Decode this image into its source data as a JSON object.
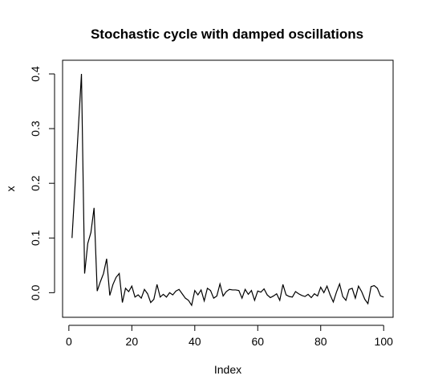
{
  "chart_data": {
    "type": "line",
    "title": "Stochastic cycle with damped oscillations",
    "xlabel": "Index",
    "ylabel": "x",
    "xlim": [
      -2,
      103
    ],
    "ylim": [
      -0.045,
      0.425
    ],
    "x_ticks": [
      0,
      20,
      40,
      60,
      80,
      100
    ],
    "y_ticks": [
      0.0,
      0.1,
      0.2,
      0.3,
      0.4
    ],
    "x_tick_labels": [
      "0",
      "20",
      "40",
      "60",
      "80",
      "100"
    ],
    "y_tick_labels": [
      "0.0",
      "0.1",
      "0.2",
      "0.3",
      "0.4"
    ],
    "grid": false,
    "line_color": "#000000",
    "x": [
      1,
      2,
      3,
      4,
      5,
      6,
      7,
      8,
      9,
      10,
      11,
      12,
      13,
      14,
      15,
      16,
      17,
      18,
      19,
      20,
      21,
      22,
      23,
      24,
      25,
      26,
      27,
      28,
      29,
      30,
      31,
      32,
      33,
      34,
      35,
      36,
      37,
      38,
      39,
      40,
      41,
      42,
      43,
      44,
      45,
      46,
      47,
      48,
      49,
      50,
      51,
      52,
      53,
      54,
      55,
      56,
      57,
      58,
      59,
      60,
      61,
      62,
      63,
      64,
      65,
      66,
      67,
      68,
      69,
      70,
      71,
      72,
      73,
      74,
      75,
      76,
      77,
      78,
      79,
      80,
      81,
      82,
      83,
      84,
      85,
      86,
      87,
      88,
      89,
      90,
      91,
      92,
      93,
      94,
      95,
      96,
      97,
      98,
      99,
      100
    ],
    "values": [
      0.1,
      0.2,
      0.3,
      0.4,
      0.035,
      0.09,
      0.11,
      0.155,
      0.003,
      0.02,
      0.035,
      0.062,
      -0.005,
      0.015,
      0.028,
      0.035,
      -0.018,
      0.008,
      0.002,
      0.012,
      -0.008,
      -0.004,
      -0.01,
      0.006,
      -0.002,
      -0.018,
      -0.012,
      0.015,
      -0.008,
      -0.003,
      -0.008,
      0.0,
      -0.004,
      0.003,
      0.006,
      -0.002,
      -0.01,
      -0.014,
      -0.023,
      0.004,
      -0.004,
      0.005,
      -0.015,
      0.008,
      0.004,
      -0.01,
      -0.006,
      0.016,
      -0.006,
      0.002,
      0.006,
      0.005,
      0.005,
      0.004,
      -0.01,
      0.006,
      -0.003,
      0.004,
      -0.014,
      0.003,
      0.001,
      0.007,
      -0.004,
      -0.009,
      -0.006,
      -0.002,
      -0.014,
      0.015,
      -0.004,
      -0.007,
      -0.008,
      0.002,
      -0.002,
      -0.005,
      -0.007,
      -0.003,
      -0.009,
      -0.002,
      -0.006,
      0.01,
      0.0,
      0.012,
      -0.004,
      -0.017,
      0.001,
      0.016,
      -0.007,
      -0.014,
      0.006,
      0.008,
      -0.01,
      0.012,
      0.002,
      -0.012,
      -0.02,
      0.011,
      0.013,
      0.008,
      -0.006,
      -0.008
    ]
  }
}
